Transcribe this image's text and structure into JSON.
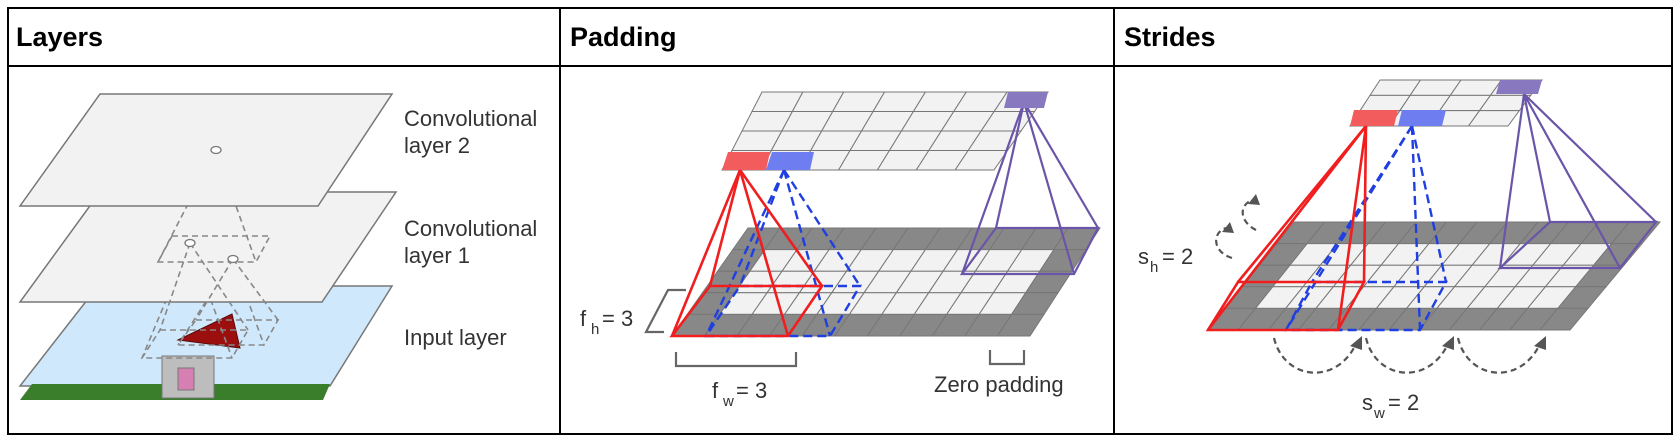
{
  "panels": [
    {
      "title": "Layers"
    },
    {
      "title": "Padding"
    },
    {
      "title": "Strides"
    }
  ],
  "layers": {
    "conv2": [
      "Convolutional",
      "layer 2"
    ],
    "conv1": [
      "Convolutional",
      "layer 1"
    ],
    "input": "Input layer"
  },
  "padding": {
    "fh_main": "f",
    "fh_sub": "h",
    "fh_val": "= 3",
    "fw_main": "f",
    "fw_sub": "w",
    "fw_val": "= 3",
    "zero_padding": "Zero padding"
  },
  "strides": {
    "sh_main": "s",
    "sh_sub": "h",
    "sh_val": "= 2",
    "sw_main": "s",
    "sw_sub": "w",
    "sw_val": "= 2"
  },
  "colors": {
    "red": "#f01e1e",
    "blue": "#1f3fe0",
    "purple": "#6a55a8",
    "gray_dark": "#888888",
    "cell_light": "#f2f2f2",
    "sky": "#cfe8fb",
    "grass": "#3a7d2a",
    "roof": "#9c0f0f"
  }
}
